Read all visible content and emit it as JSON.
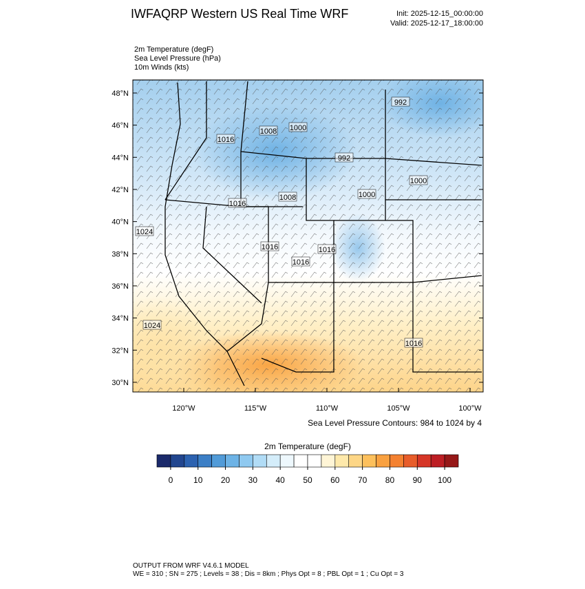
{
  "header": {
    "title": "IWFAQRP Western US Real Time WRF",
    "init": "Init: 2025-12-15_00:00:00",
    "valid": "Valid: 2025-12-17_18:00:00"
  },
  "fields": [
    "2m Temperature   (degF)",
    "Sea Level Pressure   (hPa)",
    "10m Winds   (kts)"
  ],
  "map": {
    "lat_ticks": [
      {
        "value": 48,
        "label": "48°N"
      },
      {
        "value": 46,
        "label": "46°N"
      },
      {
        "value": 44,
        "label": "44°N"
      },
      {
        "value": 42,
        "label": "42°N"
      },
      {
        "value": 40,
        "label": "40°N"
      },
      {
        "value": 38,
        "label": "38°N"
      },
      {
        "value": 36,
        "label": "36°N"
      },
      {
        "value": 34,
        "label": "34°N"
      },
      {
        "value": 32,
        "label": "32°N"
      },
      {
        "value": 30,
        "label": "30°N"
      }
    ],
    "lon_ticks": [
      {
        "value": -120,
        "label": "120°W"
      },
      {
        "value": -115,
        "label": "115°W"
      },
      {
        "value": -110,
        "label": "110°W"
      },
      {
        "value": -105,
        "label": "105°W"
      },
      {
        "value": -100,
        "label": "100°W"
      }
    ],
    "contour_labels": [
      "992",
      "1008",
      "1000",
      "1016",
      "992",
      "1000",
      "1000",
      "1008",
      "1016",
      "1024",
      "1016",
      "1016",
      "1016",
      "1024",
      "1016"
    ],
    "contour_note": "Sea Level Pressure Contours: 984 to 1024 by 4"
  },
  "colorbar": {
    "title": "2m Temperature  (degF)",
    "lim": [
      -5,
      105
    ],
    "ticks": [
      0,
      10,
      20,
      30,
      40,
      50,
      60,
      70,
      80,
      90,
      100
    ],
    "colors": [
      "#1b2a6b",
      "#22468f",
      "#2c62b0",
      "#3c7fc6",
      "#519bd8",
      "#6db3e6",
      "#8fc9f0",
      "#b1dcf6",
      "#d4edfa",
      "#eef8fd",
      "#ffffff",
      "#ffffff",
      "#fff5d6",
      "#fee9ab",
      "#fdd686",
      "#fdc05c",
      "#f9a140",
      "#f48130",
      "#e85d2a",
      "#d63627",
      "#bd1e24",
      "#961818"
    ]
  },
  "footer": [
    "OUTPUT FROM WRF V4.6.1 MODEL",
    "WE = 310 ; SN = 275 ; Levels = 38 ; Dis = 8km ; Phys Opt = 8 ; PBL Opt = 1 ; Cu Opt = 3"
  ]
}
